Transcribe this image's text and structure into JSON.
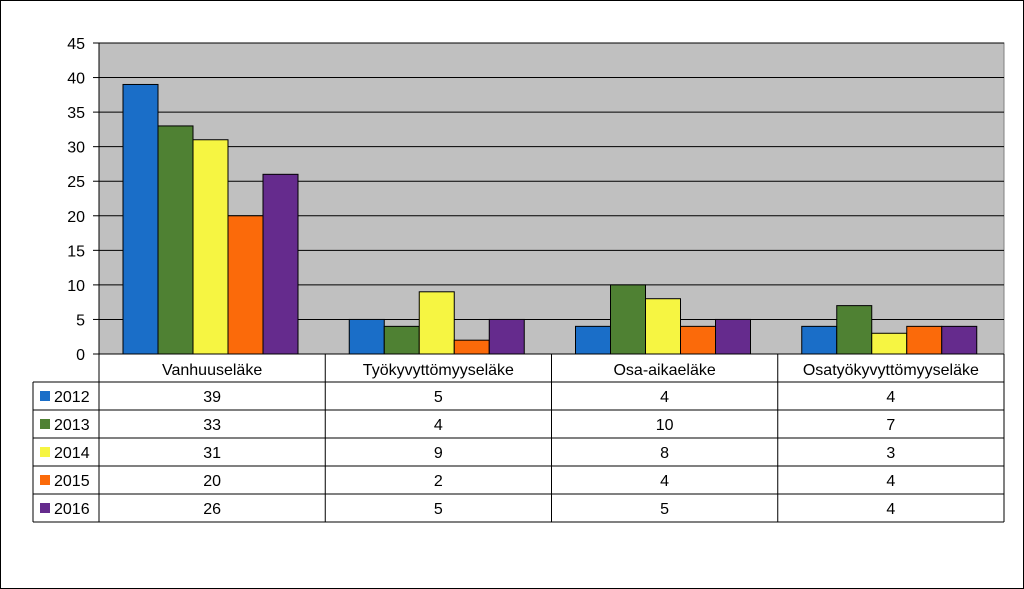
{
  "chart_data": {
    "type": "bar",
    "title": "",
    "xlabel": "",
    "ylabel": "",
    "categories": [
      "Vanhuuseläke",
      "Työkyvyttömyyseläke",
      "Osa-aikaeläke",
      "Osatyökyvyttömyyseläke"
    ],
    "series": [
      {
        "name": "2012",
        "color": "#1a6ec8",
        "values": [
          39,
          5,
          4,
          4
        ]
      },
      {
        "name": "2013",
        "color": "#4f8133",
        "values": [
          33,
          4,
          10,
          7
        ]
      },
      {
        "name": "2014",
        "color": "#f6f542",
        "values": [
          31,
          9,
          8,
          3
        ]
      },
      {
        "name": "2015",
        "color": "#fb6a0a",
        "values": [
          20,
          2,
          4,
          4
        ]
      },
      {
        "name": "2016",
        "color": "#652b8d",
        "values": [
          26,
          5,
          5,
          4
        ]
      }
    ],
    "ylim": [
      0,
      45
    ],
    "yticks": [
      0,
      5,
      10,
      15,
      20,
      25,
      30,
      35,
      40,
      45
    ],
    "grid": true,
    "plot_background": "#c0c0c0",
    "legend": "data-table"
  }
}
